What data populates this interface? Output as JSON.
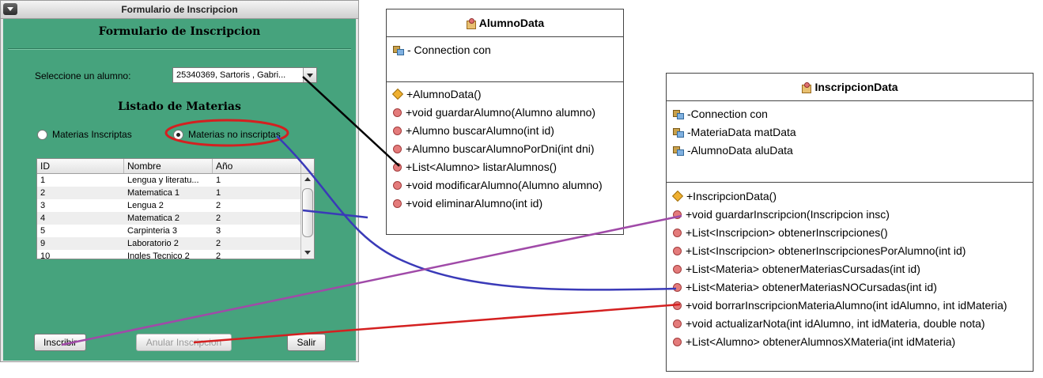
{
  "window": {
    "title": "Formulario de Inscripcion",
    "form_title": "Formulario de Inscripcion",
    "alumno_label": "Seleccione un alumno:",
    "alumno_selected": "25340369, Sartoris , Gabri...",
    "list_title": "Listado de Materias",
    "radio_inscriptas": "Materias Inscriptas",
    "radio_no_inscriptas": "Materias no inscriptas",
    "radio_selected": "Materias no inscriptas",
    "table": {
      "headers": [
        "ID",
        "Nombre",
        "Año"
      ],
      "rows": [
        [
          "1",
          "Lengua y literatu...",
          "1"
        ],
        [
          "2",
          "Matematica 1",
          "1"
        ],
        [
          "3",
          "Lengua 2",
          "2"
        ],
        [
          "4",
          "Matematica 2",
          "2"
        ],
        [
          "5",
          "Carpinteria 3",
          "3"
        ],
        [
          "9",
          "Laboratorio 2",
          "2"
        ],
        [
          "10",
          "Ingles Tecnico 2",
          "2"
        ]
      ]
    },
    "buttons": {
      "inscribir": "Inscribir",
      "anular": "Anular Inscripcion",
      "salir": "Salir"
    }
  },
  "alumno_data": {
    "name": "AlumnoData",
    "fields": [
      "- Connection con"
    ],
    "methods": [
      "+AlumnoData()",
      "+void guardarAlumno(Alumno alumno)",
      "+Alumno buscarAlumno(int id)",
      "+Alumno buscarAlumnoPorDni(int dni)",
      "+List<Alumno> listarAlumnos()",
      "+void modificarAlumno(Alumno alumno)",
      "+void eliminarAlumno(int id)"
    ]
  },
  "inscripcion_data": {
    "name": "InscripcionData",
    "fields": [
      "-Connection con",
      "-MateriaData matData",
      "-AlumnoData aluData"
    ],
    "methods": [
      "+InscripcionData()",
      "+void guardarInscripcion(Inscripcion insc)",
      "+List<Inscripcion> obtenerInscripciones()",
      "+List<Inscripcion> obtenerInscripcionesPorAlumno(int id)",
      "+List<Materia> obtenerMateriasCursadas(int id)",
      "+List<Materia> obtenerMateriasNOCursadas(int id)",
      "+void borrarInscripcionMateriaAlumno(int idAlumno, int idMateria)",
      "+void actualizarNota(int idAlumno, int idMateria, double nota)",
      "+List<Alumno> obtenerAlumnosXMateria(int idMateria)"
    ]
  },
  "colors": {
    "panel": "#46a37d",
    "link_black": "#000000",
    "link_blue": "#3a3ab8",
    "link_purple": "#a04aa8",
    "link_red": "#d42020",
    "highlight_ellipse": "#d42020"
  }
}
